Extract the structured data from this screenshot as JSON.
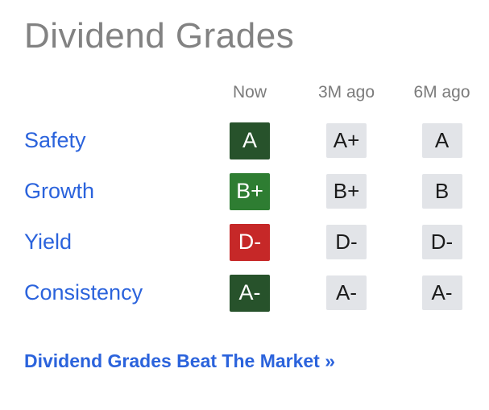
{
  "title": "Dividend Grades",
  "table": {
    "headers": {
      "now": "Now",
      "m3": "3M ago",
      "m6": "6M ago"
    },
    "rows": [
      {
        "label": "Safety",
        "now": {
          "grade": "A",
          "bg": "#27522b"
        },
        "m3": "A+",
        "m6": "A"
      },
      {
        "label": "Growth",
        "now": {
          "grade": "B+",
          "bg": "#2e7d32"
        },
        "m3": "B+",
        "m6": "B"
      },
      {
        "label": "Yield",
        "now": {
          "grade": "D-",
          "bg": "#c62828"
        },
        "m3": "D-",
        "m6": "D-"
      },
      {
        "label": "Consistency",
        "now": {
          "grade": "A-",
          "bg": "#27522b"
        },
        "m3": "A-",
        "m6": "A-"
      }
    ]
  },
  "footer_link": "Dividend Grades Beat The Market »",
  "colors": {
    "grade_positive_dark": "#27522b",
    "grade_positive": "#2e7d32",
    "grade_negative": "#c62828",
    "history_badge_bg": "#e2e4e8",
    "link_blue": "#2b63dc",
    "heading_gray": "#828282"
  }
}
